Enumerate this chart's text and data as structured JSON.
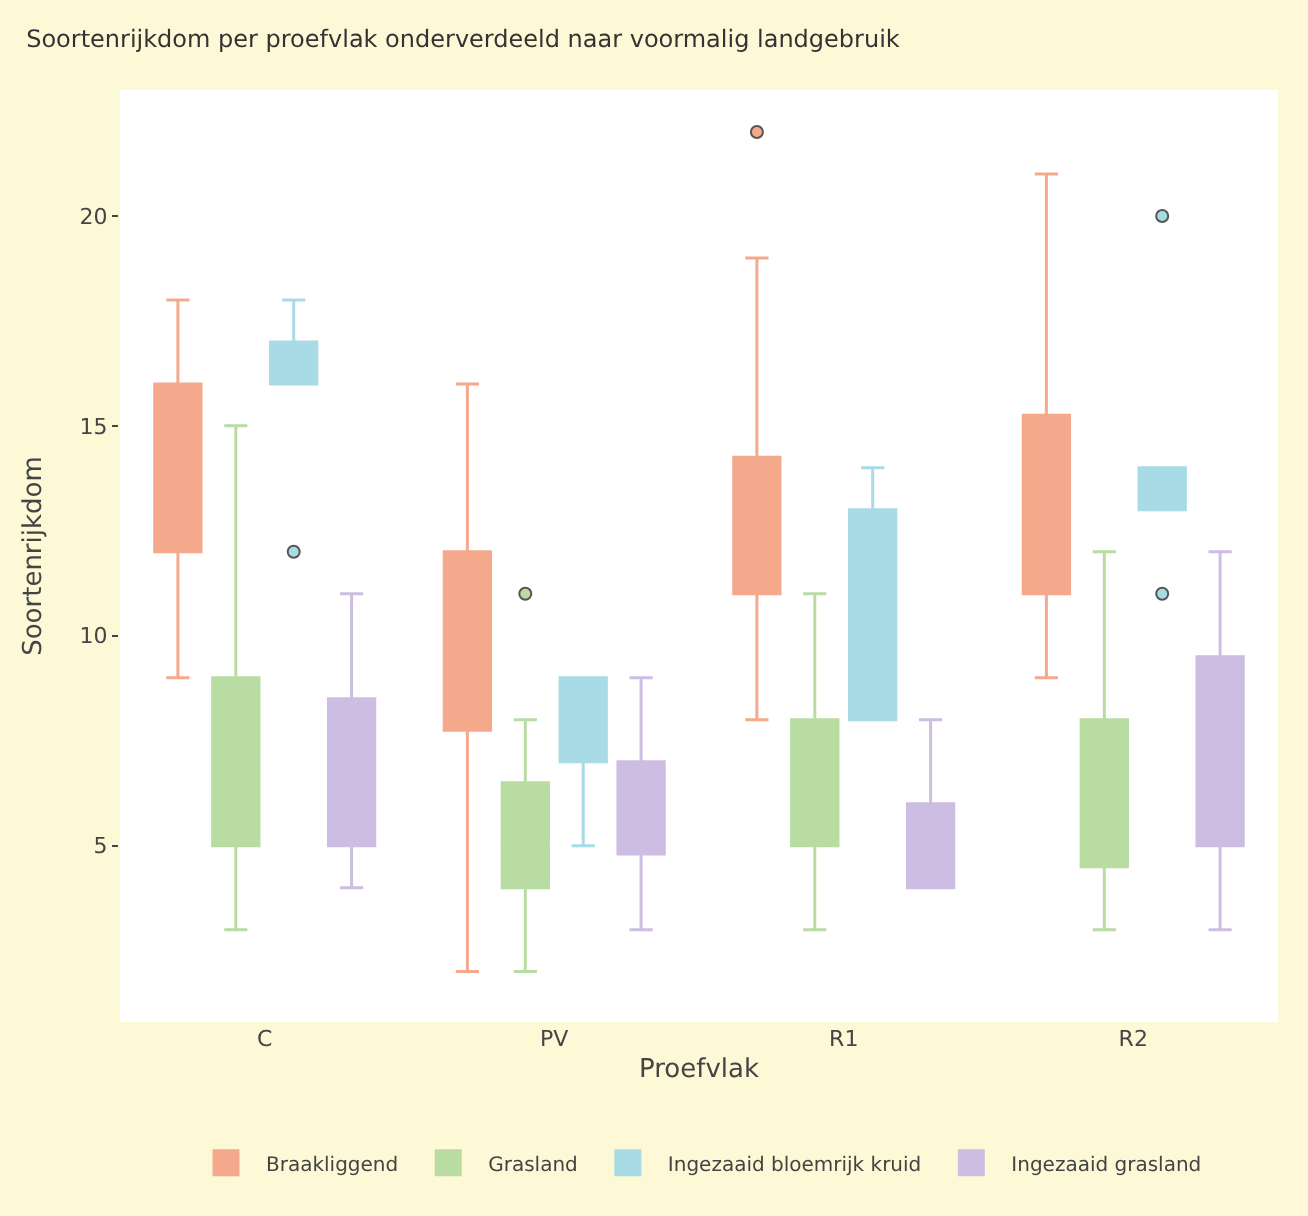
{
  "chart_data": {
    "type": "box",
    "title": "Soortenrijkdom per proefvlak onderverdeeld naar voormalig landgebruik",
    "xlabel": "Proefvlak",
    "ylabel": "Soortenrijkdom",
    "categories": [
      "C",
      "PV",
      "R1",
      "R2"
    ],
    "ylim": [
      0.8,
      23
    ],
    "yticks": [
      5,
      10,
      15,
      20
    ],
    "legend": "bottom",
    "series": [
      {
        "name": "Braakliggend",
        "color": "#f5a98c",
        "boxes": [
          {
            "low": 9,
            "q1": 12,
            "median": 14,
            "q3": 16,
            "high": 18
          },
          {
            "low": 2,
            "q1": 7.75,
            "median": 9.5,
            "q3": 12,
            "high": 16
          },
          {
            "low": 8,
            "q1": 11,
            "median": 12,
            "q3": 14.25,
            "high": 19,
            "outliers": [
              22
            ]
          },
          {
            "low": 9,
            "q1": 11,
            "median": 13,
            "q3": 15.25,
            "high": 21
          }
        ]
      },
      {
        "name": "Grasland",
        "color": "#b9dca2",
        "boxes": [
          {
            "low": 3,
            "q1": 5,
            "median": 7,
            "q3": 9,
            "high": 15
          },
          {
            "low": 2,
            "q1": 4,
            "median": 5,
            "q3": 6.5,
            "high": 8,
            "outliers": [
              11
            ]
          },
          {
            "low": 3,
            "q1": 5,
            "median": 6,
            "q3": 8,
            "high": 11
          },
          {
            "low": 3,
            "q1": 4.5,
            "median": 7,
            "q3": 8,
            "high": 12
          }
        ]
      },
      {
        "name": "Ingezaaid bloemrijk kruid",
        "color": "#a8dbe6",
        "boxes": [
          {
            "low": 16,
            "q1": 16,
            "median": 16,
            "q3": 17,
            "high": 18,
            "outliers": [
              12
            ]
          },
          {
            "low": 5,
            "q1": 7,
            "median": 8,
            "q3": 9,
            "high": 9
          },
          {
            "low": 8,
            "q1": 8,
            "median": 11,
            "q3": 13,
            "high": 14
          },
          {
            "low": 13,
            "q1": 13,
            "median": 13,
            "q3": 14,
            "high": 14,
            "outliers": [
              20,
              11
            ]
          }
        ]
      },
      {
        "name": "Ingezaaid grasland",
        "color": "#cdbde3",
        "boxes": [
          {
            "low": 4,
            "q1": 5,
            "median": 6,
            "q3": 8.5,
            "high": 11
          },
          {
            "low": 3,
            "q1": 4.8,
            "median": 6,
            "q3": 7,
            "high": 9
          },
          {
            "low": 4,
            "q1": 4,
            "median": 5.5,
            "q3": 6,
            "high": 8
          },
          {
            "low": 3,
            "q1": 5,
            "median": 5.5,
            "q3": 9.5,
            "high": 12
          }
        ]
      }
    ]
  }
}
